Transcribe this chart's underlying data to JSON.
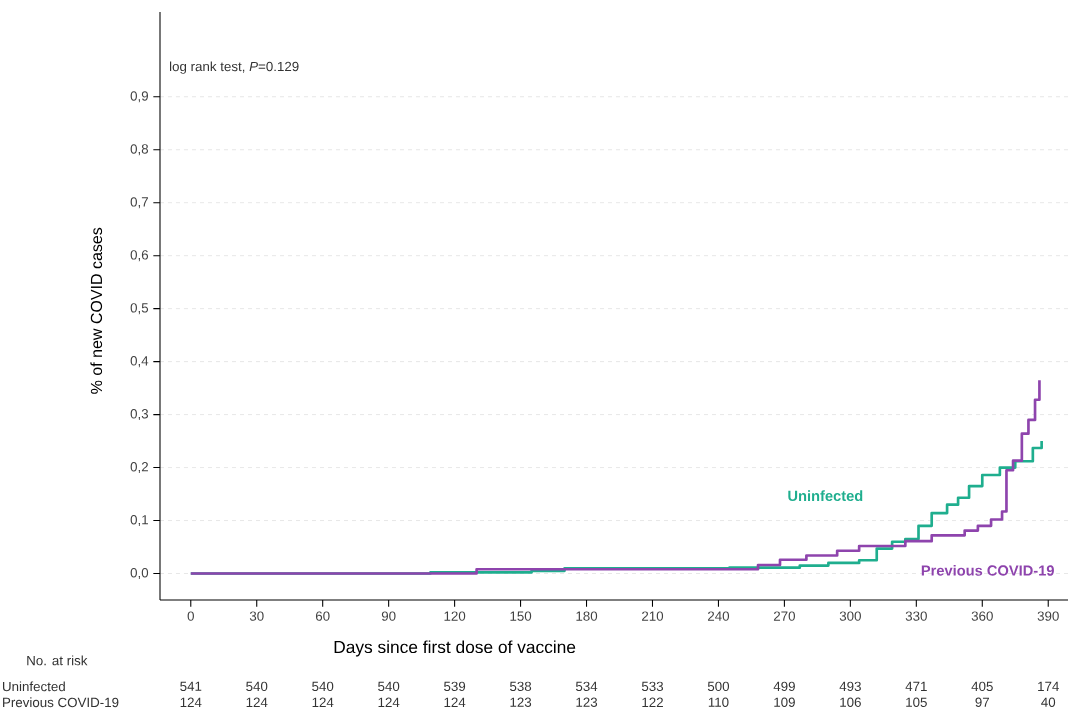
{
  "chart_data": {
    "type": "step",
    "xlabel": "Days since first dose of vaccine",
    "ylabel": "% of new COVID cases",
    "xlim": [
      -14,
      399
    ],
    "ylim": [
      -0.05,
      1.06
    ],
    "xticks": [
      0,
      30,
      60,
      90,
      120,
      150,
      180,
      210,
      240,
      270,
      300,
      330,
      360,
      390
    ],
    "yticks": [
      {
        "value": 0.0,
        "label": "0,0"
      },
      {
        "value": 0.1,
        "label": "0,1"
      },
      {
        "value": 0.2,
        "label": "0,2"
      },
      {
        "value": 0.3,
        "label": "0,3"
      },
      {
        "value": 0.4,
        "label": "0,4"
      },
      {
        "value": 0.5,
        "label": "0,5"
      },
      {
        "value": 0.6,
        "label": "0,6"
      },
      {
        "value": 0.7,
        "label": "0,7"
      },
      {
        "value": 0.8,
        "label": "0,8"
      },
      {
        "value": 0.9,
        "label": "0,9"
      }
    ],
    "grid": "y",
    "line_style": "solid",
    "series": [
      {
        "name": "Uninfected",
        "color": "#1fae8e",
        "x": [
          0,
          109,
          155,
          170,
          245,
          262,
          275,
          277,
          290,
          304,
          312,
          319,
          325,
          331,
          337,
          344,
          349,
          354,
          360,
          368,
          375,
          383,
          387
        ],
        "values": [
          0,
          0.002,
          0.005,
          0.01,
          0.011,
          0.011,
          0.011,
          0.015,
          0.02,
          0.025,
          0.047,
          0.06,
          0.065,
          0.09,
          0.114,
          0.13,
          0.143,
          0.165,
          0.186,
          0.2,
          0.212,
          0.237,
          0.25
        ]
      },
      {
        "name": "Previous COVID-19",
        "color": "#8e44ad",
        "x": [
          0,
          130,
          258,
          268,
          280,
          294,
          304,
          325,
          337,
          352,
          358,
          364,
          369,
          371,
          374,
          378,
          381,
          384,
          386
        ],
        "values": [
          0,
          0.008,
          0.016,
          0.026,
          0.034,
          0.043,
          0.052,
          0.061,
          0.072,
          0.081,
          0.09,
          0.102,
          0.117,
          0.195,
          0.213,
          0.264,
          0.29,
          0.328,
          0.365
        ]
      }
    ],
    "annotations": [
      "log rank test, *P*=0.129",
      "No. at risk",
      "Uninfected",
      "541",
      "540",
      "540",
      "540",
      "539",
      "538",
      "534",
      "533",
      "500",
      "499",
      "493",
      "471",
      "405",
      "174",
      "Previous COVID-19",
      "124",
      "124",
      "124",
      "124",
      "124",
      "123",
      "123",
      "122",
      "110",
      "109",
      "106",
      "105",
      "97",
      "40"
    ]
  }
}
